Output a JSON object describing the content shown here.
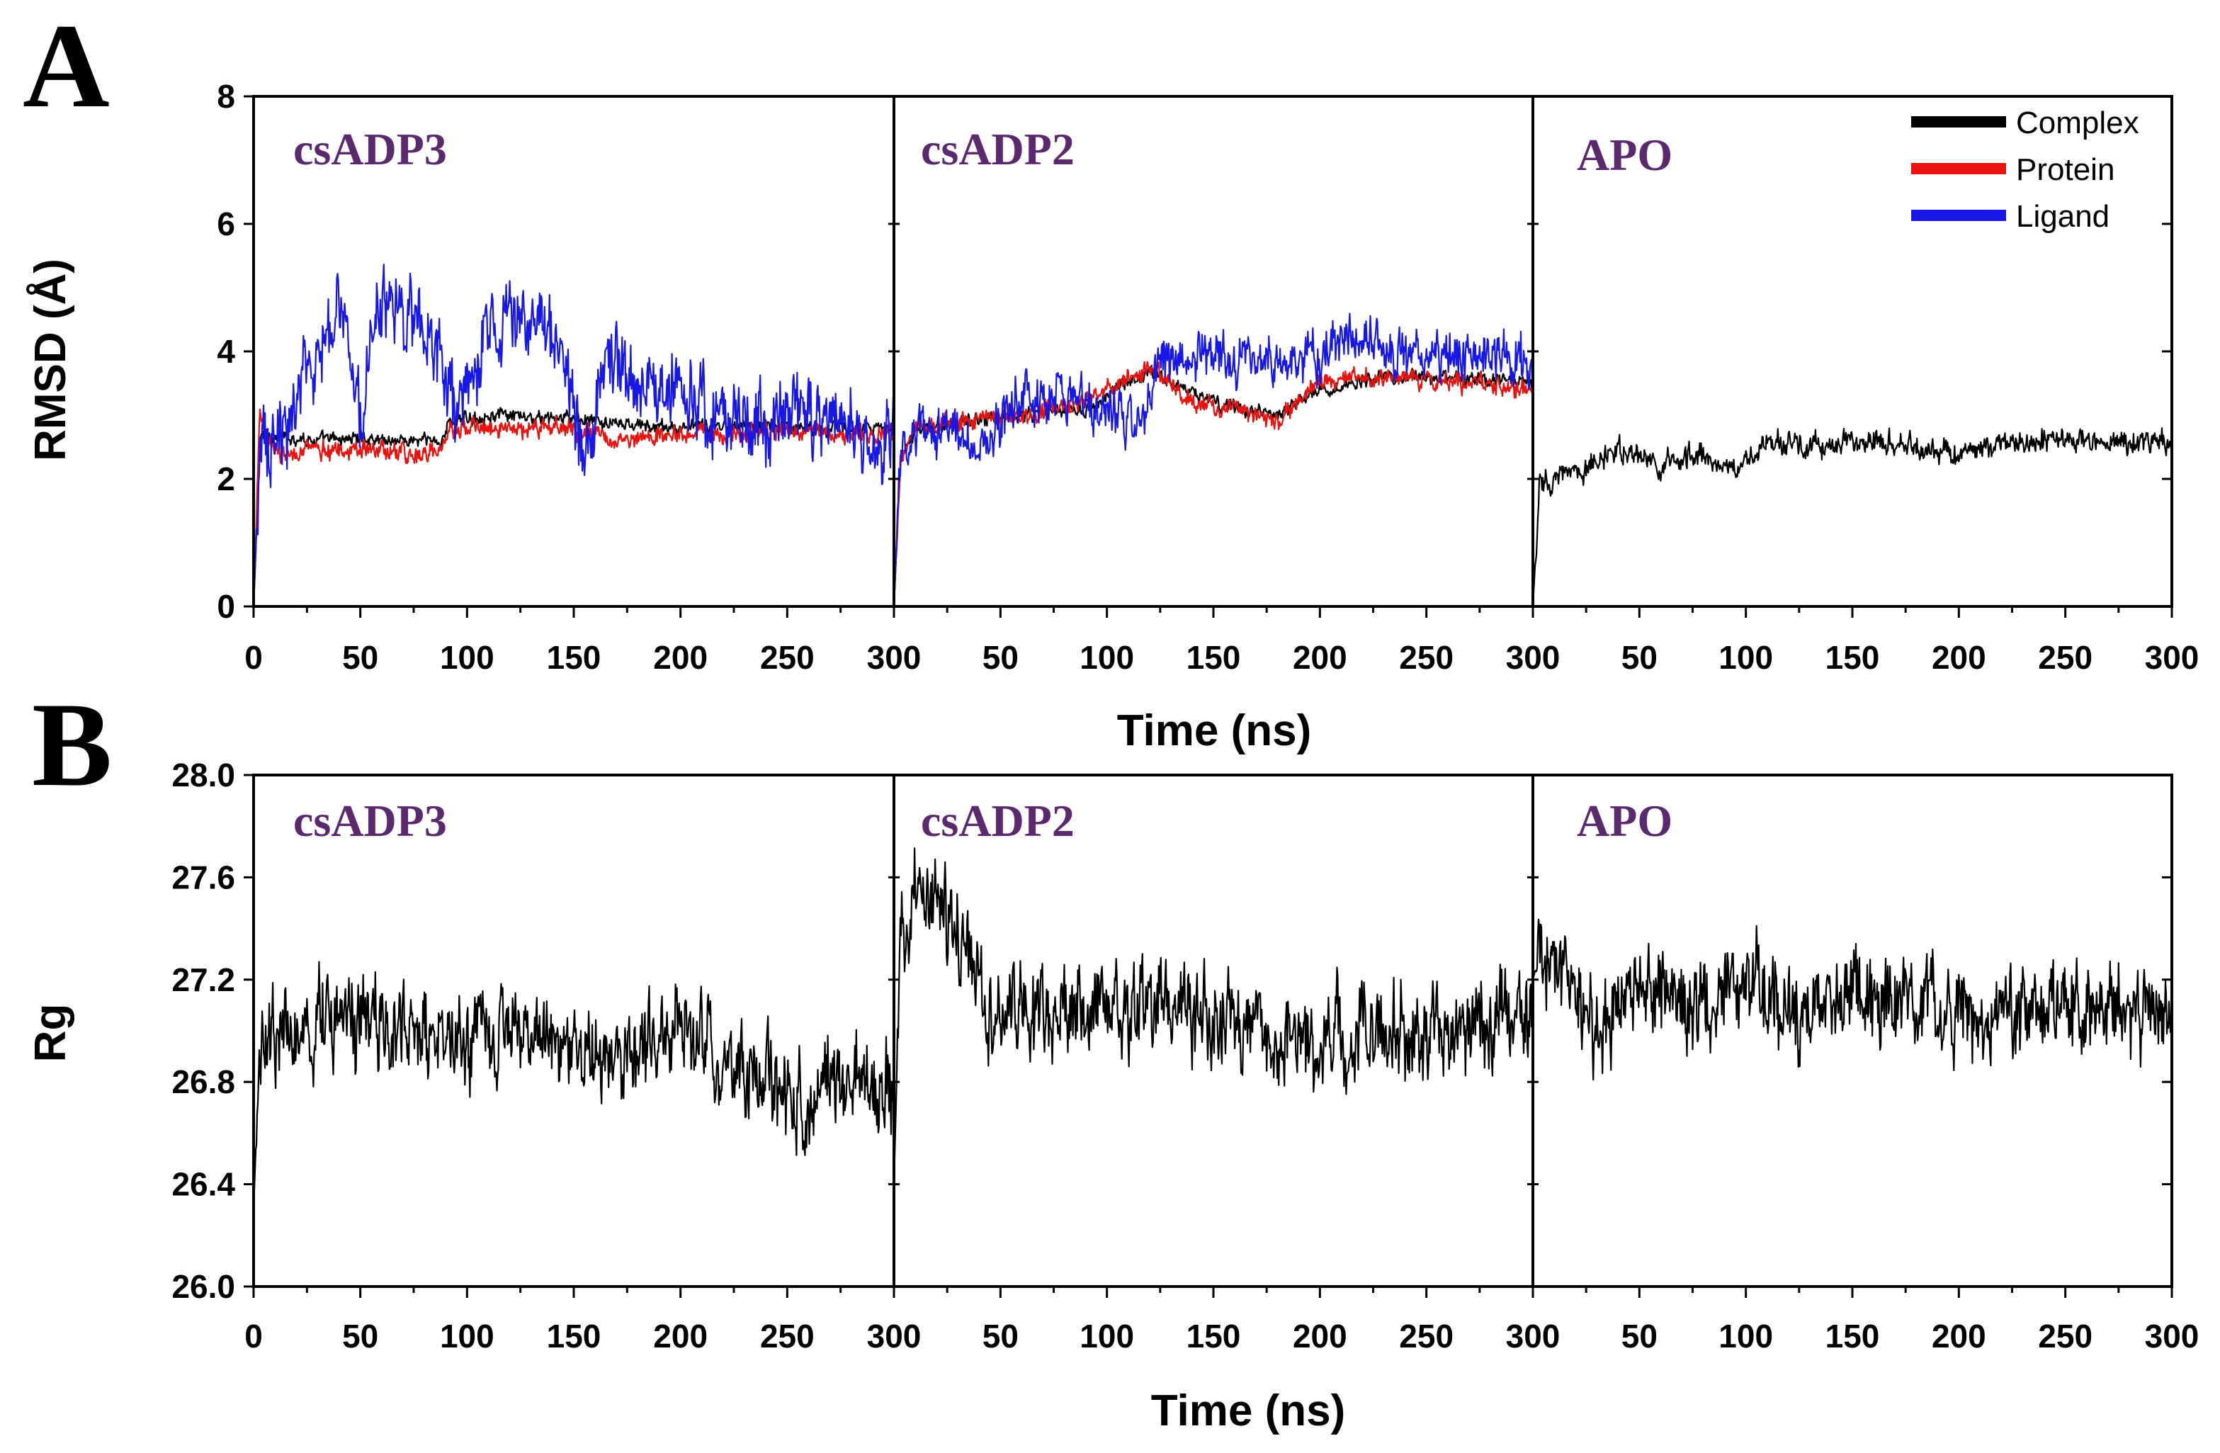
{
  "chart_data": [
    {
      "panel": "A",
      "type": "line",
      "ylabel": "RMSD (Å)",
      "xlabel": "Time (ns)",
      "ylim": [
        0,
        8
      ],
      "yticks": [
        "0",
        "2",
        "4",
        "6",
        "8"
      ],
      "xlim": [
        0,
        300
      ],
      "xticks": [
        "0",
        "50",
        "100",
        "150",
        "200",
        "250",
        "300"
      ],
      "legend": {
        "position": "top-right",
        "entries": [
          {
            "label": "Complex",
            "color": "#000000"
          },
          {
            "label": "Protein",
            "color": "#e8120f"
          },
          {
            "label": "Ligand",
            "color": "#1717e6"
          }
        ]
      },
      "subplots": [
        {
          "title": "csADP3",
          "series": [
            {
              "name": "Complex",
              "color": "#000000",
              "x": [
                0,
                3,
                6,
                10,
                20,
                30,
                50,
                70,
                88,
                92,
                110,
                130,
                150,
                170,
                200,
                230,
                260,
                280,
                300
              ],
              "y": [
                0,
                2.6,
                2.7,
                2.65,
                2.65,
                2.6,
                2.65,
                2.6,
                2.6,
                2.9,
                3.0,
                2.95,
                2.95,
                2.85,
                2.8,
                2.85,
                2.8,
                2.8,
                2.75
              ]
            },
            {
              "name": "Protein",
              "color": "#e8120f",
              "x": [
                0,
                3,
                6,
                10,
                20,
                30,
                50,
                70,
                88,
                92,
                110,
                130,
                150,
                170,
                200,
                230,
                260,
                280,
                300
              ],
              "y": [
                0,
                3.1,
                2.7,
                2.4,
                2.4,
                2.45,
                2.45,
                2.4,
                2.4,
                2.75,
                2.8,
                2.8,
                2.75,
                2.65,
                2.7,
                2.7,
                2.75,
                2.7,
                2.7
              ]
            },
            {
              "name": "Ligand",
              "color": "#1717e6",
              "x": [
                0,
                3,
                8,
                15,
                20,
                30,
                40,
                50,
                60,
                70,
                85,
                95,
                110,
                125,
                135,
                145,
                155,
                165,
                180,
                200,
                220,
                240,
                260,
                280,
                300
              ],
              "y": [
                0,
                2.5,
                2.4,
                3.0,
                3.4,
                3.8,
                4.6,
                3.2,
                4.7,
                4.5,
                4.2,
                3.0,
                4.2,
                4.6,
                4.4,
                4.0,
                2.4,
                4.0,
                3.5,
                3.3,
                3.1,
                2.9,
                3.0,
                3.0,
                2.5
              ]
            }
          ]
        },
        {
          "title": "csADP2",
          "series": [
            {
              "name": "Complex",
              "color": "#000000",
              "x": [
                0,
                3,
                10,
                30,
                60,
                90,
                120,
                150,
                180,
                200,
                230,
                260,
                300
              ],
              "y": [
                0,
                2.3,
                2.8,
                2.9,
                3.0,
                3.1,
                3.7,
                3.2,
                3.0,
                3.4,
                3.6,
                3.6,
                3.5
              ]
            },
            {
              "name": "Protein",
              "color": "#e8120f",
              "x": [
                0,
                3,
                10,
                30,
                60,
                90,
                110,
                125,
                140,
                160,
                180,
                195,
                210,
                240,
                270,
                300
              ],
              "y": [
                0,
                2.3,
                2.8,
                2.9,
                3.0,
                3.2,
                3.6,
                3.7,
                3.2,
                3.1,
                2.9,
                3.4,
                3.6,
                3.6,
                3.5,
                3.4
              ]
            },
            {
              "name": "Ligand",
              "color": "#1717e6",
              "x": [
                0,
                3,
                10,
                25,
                40,
                60,
                80,
                100,
                118,
                122,
                140,
                170,
                200,
                220,
                250,
                280,
                300
              ],
              "y": [
                0,
                2.4,
                2.6,
                2.8,
                2.5,
                3.3,
                3.3,
                3.0,
                2.8,
                3.8,
                3.9,
                3.9,
                4.0,
                4.2,
                3.9,
                3.9,
                3.8
              ]
            }
          ]
        },
        {
          "title": "APO",
          "series": [
            {
              "name": "Complex",
              "color": "#000000",
              "x": [
                0,
                3,
                10,
                30,
                40,
                60,
                80,
                95,
                110,
                130,
                160,
                180,
                200,
                230,
                260,
                300
              ],
              "y": [
                0,
                1.9,
                2.0,
                2.2,
                2.5,
                2.2,
                2.4,
                2.1,
                2.6,
                2.5,
                2.6,
                2.5,
                2.4,
                2.6,
                2.6,
                2.55
              ]
            }
          ]
        }
      ]
    },
    {
      "panel": "B",
      "type": "line",
      "ylabel": "Rg",
      "xlabel": "Time (ns)",
      "ylim": [
        26.0,
        28.0
      ],
      "yticks": [
        "26.0",
        "26.4",
        "26.8",
        "27.2",
        "27.6",
        "28.0"
      ],
      "xlim": [
        0,
        300
      ],
      "xticks": [
        "0",
        "50",
        "100",
        "150",
        "200",
        "250",
        "300"
      ],
      "subplots": [
        {
          "title": "csADP3",
          "series": [
            {
              "name": "Complex",
              "color": "#000000",
              "x": [
                0,
                3,
                10,
                30,
                60,
                80,
                100,
                130,
                160,
                180,
                200,
                220,
                240,
                260,
                280,
                300
              ],
              "y": [
                26.3,
                27.0,
                27.0,
                27.0,
                27.05,
                27.0,
                27.0,
                27.0,
                26.95,
                26.9,
                27.05,
                26.85,
                26.8,
                26.7,
                26.85,
                26.75
              ]
            }
          ]
        },
        {
          "title": "csADP2",
          "series": [
            {
              "name": "Complex",
              "color": "#000000",
              "x": [
                0,
                3,
                10,
                20,
                35,
                45,
                60,
                90,
                120,
                150,
                180,
                200,
                230,
                260,
                300
              ],
              "y": [
                26.4,
                27.35,
                27.45,
                27.5,
                27.3,
                27.1,
                27.05,
                27.1,
                27.1,
                27.05,
                27.0,
                26.95,
                27.0,
                27.0,
                27.05
              ]
            }
          ]
        },
        {
          "title": "APO",
          "series": [
            {
              "name": "Complex",
              "color": "#000000",
              "x": [
                0,
                3,
                15,
                30,
                45,
                60,
                75,
                90,
                105,
                120,
                150,
                180,
                210,
                240,
                270,
                300
              ],
              "y": [
                27.2,
                27.3,
                27.25,
                27.0,
                27.15,
                27.2,
                27.05,
                27.15,
                27.25,
                27.05,
                27.15,
                27.1,
                27.05,
                27.1,
                27.1,
                27.1
              ]
            }
          ]
        }
      ]
    }
  ]
}
